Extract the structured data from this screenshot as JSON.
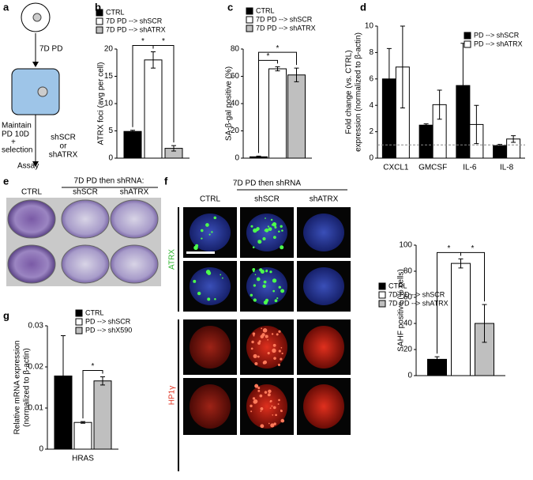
{
  "panel_labels": [
    "a",
    "b",
    "c",
    "d",
    "e",
    "f",
    "g"
  ],
  "schematic": {
    "step1": "7D PD",
    "step2": [
      "Maintain",
      "PD 10D",
      "+",
      "selection"
    ],
    "treatment": [
      "shSCR",
      "or",
      "shATRX"
    ],
    "step3": "Assay"
  },
  "panel_e": {
    "header": "7D PD then shRNA:",
    "columns": [
      "CTRL",
      "shSCR",
      "shATRX"
    ]
  },
  "panel_f": {
    "header": "7D PD then shRNA",
    "columns": [
      "CTRL",
      "shSCR",
      "shATRX"
    ],
    "rows": [
      "ATRX",
      "HP1γ"
    ]
  },
  "chart_data": [
    {
      "type": "bar",
      "y_label": [
        "ATRX foci (avg per cell)"
      ],
      "categories": [
        null
      ],
      "series": [
        {
          "name": "CTRL",
          "color": "#000000",
          "values": [
            4.9
          ],
          "errors": [
            0.2
          ]
        },
        {
          "name": "7D PD --> shSCR",
          "color": "#ffffff",
          "values": [
            18
          ],
          "errors": [
            1.5
          ]
        },
        {
          "name": "7D PD --> shATRX",
          "color": "#bfbfbf",
          "values": [
            1.8
          ],
          "errors": [
            0.5
          ]
        }
      ],
      "ylim": [
        0,
        20
      ],
      "yticks": [
        0,
        5,
        10,
        15,
        20
      ],
      "annotations": [
        "*",
        "*"
      ]
    },
    {
      "type": "bar",
      "y_label": [
        "SA-β-gal positive (%)"
      ],
      "categories": [
        null
      ],
      "series": [
        {
          "name": "CTRL",
          "color": "#000000",
          "values": [
            1
          ],
          "errors": [
            0.5
          ]
        },
        {
          "name": "7D PD --> shSCR",
          "color": "#ffffff",
          "values": [
            65.5
          ],
          "errors": [
            1.5
          ]
        },
        {
          "name": "7D PD --> shATRX",
          "color": "#bfbfbf",
          "values": [
            61
          ],
          "errors": [
            5
          ]
        }
      ],
      "ylim": [
        0,
        80
      ],
      "yticks": [
        0,
        20,
        40,
        60,
        80
      ],
      "annotations": [
        "*",
        "*"
      ]
    },
    {
      "type": "bar",
      "y_label": [
        "Fold change (vs. CTRL)",
        "expression (normalized to β-actin)"
      ],
      "categories": [
        "CXCL1",
        "GMCSF",
        "IL-6",
        "IL-8"
      ],
      "series": [
        {
          "name": "PD --> shSCR",
          "color": "#000000",
          "values": [
            6,
            2.5,
            5.5,
            0.95
          ],
          "errors": [
            2.3,
            0.1,
            3.2,
            0.1
          ]
        },
        {
          "name": "PD --> shATRX",
          "color": "#ffffff",
          "values": [
            6.9,
            4.05,
            2.55,
            1.45
          ],
          "errors": [
            3.1,
            1.1,
            1.45,
            0.25
          ]
        }
      ],
      "ylim": [
        0,
        10
      ],
      "yticks": [
        0,
        2,
        4,
        6,
        8,
        10
      ],
      "reference_line": 1,
      "annotations": []
    },
    {
      "type": "bar",
      "y_label": [
        "SAHF positive (% cells)"
      ],
      "categories": [
        null
      ],
      "series": [
        {
          "name": "CTRL",
          "color": "#000000",
          "values": [
            12.5
          ],
          "errors": [
            2
          ]
        },
        {
          "name": "7D PD --> shSCR",
          "color": "#ffffff",
          "values": [
            86
          ],
          "errors": [
            3.5
          ]
        },
        {
          "name": "7D PD --> shATRX",
          "color": "#bfbfbf",
          "values": [
            40
          ],
          "errors": [
            14.5
          ]
        }
      ],
      "ylim": [
        0,
        100
      ],
      "yticks": [
        0,
        20,
        40,
        60,
        80,
        100
      ],
      "annotations": [
        "*",
        "*"
      ]
    },
    {
      "type": "bar",
      "y_label": [
        "Relative mRNA expression",
        "(normalized to β-actin)"
      ],
      "categories": [
        "HRAS"
      ],
      "series": [
        {
          "name": "CTRL",
          "color": "#000000",
          "values": [
            0.0178
          ],
          "errors": [
            0.0098
          ]
        },
        {
          "name": "PD --> shSCR",
          "color": "#ffffff",
          "values": [
            0.0065
          ],
          "errors": [
            0.0002
          ]
        },
        {
          "name": "PD --> shX590",
          "color": "#bfbfbf",
          "values": [
            0.0166
          ],
          "errors": [
            0.001
          ]
        }
      ],
      "ylim": [
        0,
        0.03
      ],
      "yticks": [
        0,
        0.01,
        0.02,
        0.03
      ],
      "annotations": [
        "*"
      ]
    }
  ]
}
